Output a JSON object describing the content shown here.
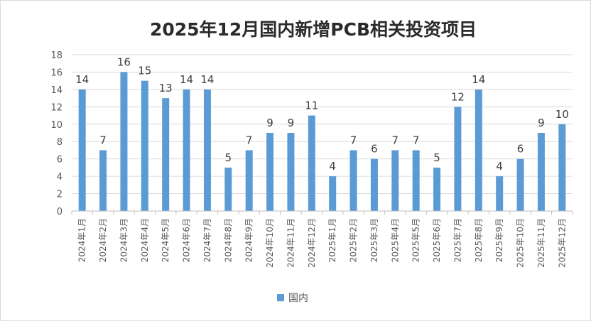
{
  "chart_data": {
    "type": "bar",
    "title": "2025年12月国内新增PCB相关投资项目",
    "xlabel": "",
    "ylabel": "",
    "ylim": [
      0,
      18
    ],
    "yticks": [
      0,
      2,
      4,
      6,
      8,
      10,
      12,
      14,
      16,
      18
    ],
    "grid": true,
    "legend_position": "bottom",
    "categories": [
      "2024年1月",
      "2024年2月",
      "2024年3月",
      "2024年4月",
      "2024年5月",
      "2024年6月",
      "2024年7月",
      "2024年8月",
      "2024年9月",
      "2024年10月",
      "2024年11月",
      "2024年12月",
      "2025年1月",
      "2025年2月",
      "2025年3月",
      "2025年4月",
      "2025年5月",
      "2025年6月",
      "2025年7月",
      "2025年8月",
      "2025年9月",
      "2025年10月",
      "2025年11月",
      "2025年12月"
    ],
    "series": [
      {
        "name": "国内",
        "color": "#5b9bd5",
        "values": [
          14,
          7,
          16,
          15,
          13,
          14,
          14,
          5,
          7,
          9,
          9,
          11,
          4,
          7,
          6,
          7,
          7,
          5,
          12,
          14,
          4,
          6,
          9,
          10
        ]
      }
    ]
  }
}
